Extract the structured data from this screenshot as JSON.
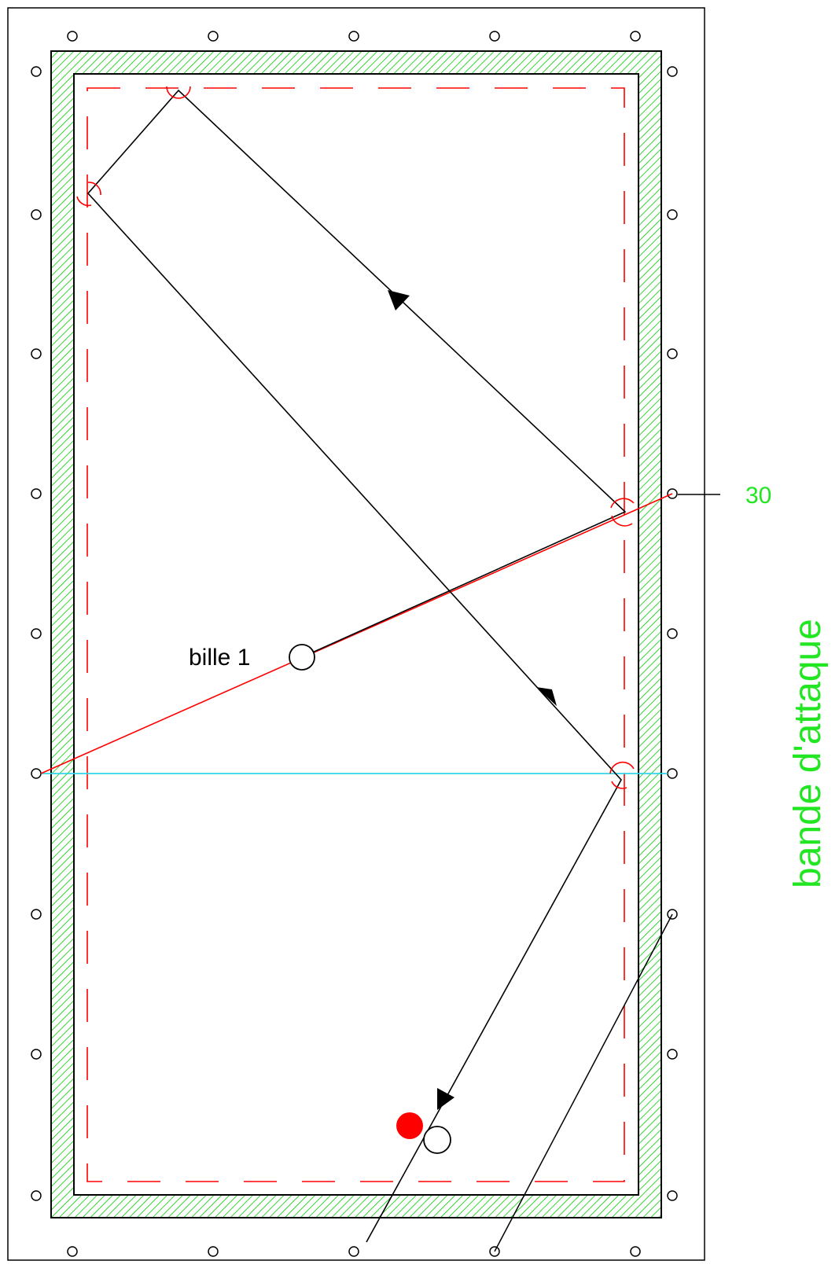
{
  "diagram": {
    "ball1_label": "bille 1",
    "diamond_number": "30",
    "rail_label": "bande d'attaque"
  },
  "colors": {
    "frame": "#000000",
    "cushion_hatch": "#00cc00",
    "trajectory": "#000000",
    "aim_line": "#ff0000",
    "reference_line": "#33d6e6",
    "dashed_offset": "#ff0000",
    "red_ball": "#ff0000",
    "label_green": "#22e622"
  }
}
